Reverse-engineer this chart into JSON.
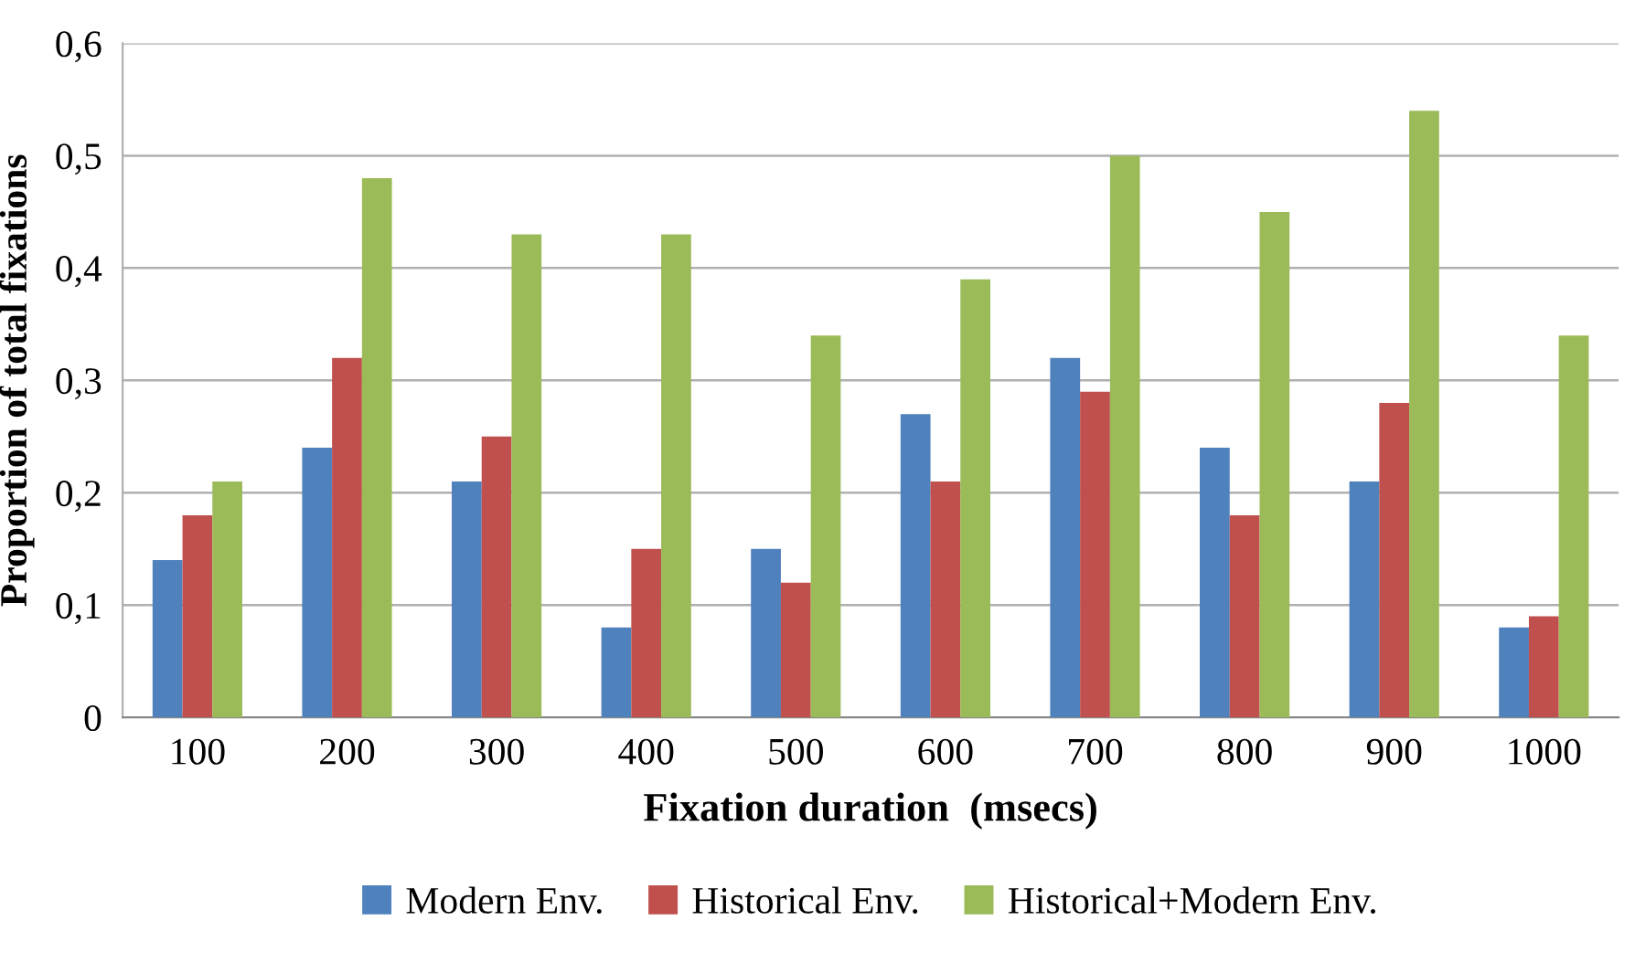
{
  "chart_data": {
    "type": "bar",
    "xlabel": "Fixation duration  (msecs)",
    "ylabel": "Proportion of total fixations",
    "categories": [
      "100",
      "200",
      "300",
      "400",
      "500",
      "600",
      "700",
      "800",
      "900",
      "1000"
    ],
    "series": [
      {
        "name": "Modern Env.",
        "color": "#4f81bd",
        "values": [
          0.14,
          0.24,
          0.21,
          0.08,
          0.15,
          0.27,
          0.32,
          0.24,
          0.21,
          0.08
        ]
      },
      {
        "name": "Historical Env.",
        "color": "#c0504d",
        "values": [
          0.18,
          0.32,
          0.25,
          0.15,
          0.12,
          0.21,
          0.29,
          0.18,
          0.28,
          0.09
        ]
      },
      {
        "name": "Historical+Modern Env.",
        "color": "#9bbb59",
        "values": [
          0.21,
          0.48,
          0.43,
          0.43,
          0.34,
          0.39,
          0.5,
          0.45,
          0.54,
          0.34
        ]
      }
    ],
    "ylim": [
      0,
      0.6
    ],
    "yticks": [
      {
        "value": 0,
        "label": "0"
      },
      {
        "value": 0.1,
        "label": "0,1"
      },
      {
        "value": 0.2,
        "label": "0,2"
      },
      {
        "value": 0.3,
        "label": "0,3"
      },
      {
        "value": 0.4,
        "label": "0,4"
      },
      {
        "value": 0.5,
        "label": "0,5"
      },
      {
        "value": 0.6,
        "label": "0,6"
      }
    ],
    "grid": "y",
    "legend": "bottom"
  }
}
